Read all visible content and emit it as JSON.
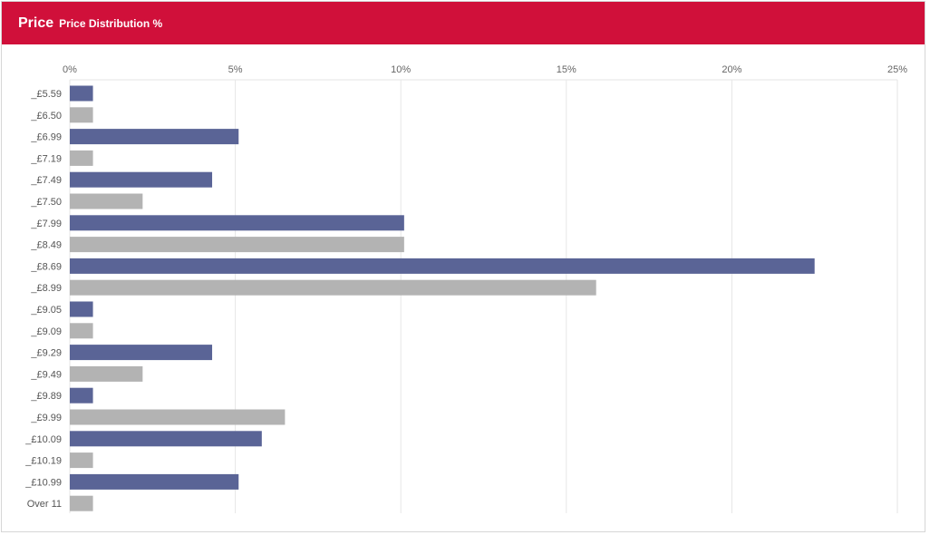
{
  "header": {
    "title": "Price",
    "subtitle": "Price Distribution %"
  },
  "colors": {
    "header_bg": "#d0103a",
    "bar_primary": "#5a6496",
    "bar_secondary": "#b3b3b3",
    "grid": "#e6e6e6"
  },
  "chart_data": {
    "type": "bar",
    "orientation": "horizontal",
    "title": "",
    "xlabel": "",
    "ylabel": "",
    "xlim": [
      0,
      25
    ],
    "grid": true,
    "x_ticks": [
      0,
      5,
      10,
      15,
      20,
      25
    ],
    "x_tick_labels": [
      "0%",
      "5%",
      "10%",
      "15%",
      "20%",
      "25%"
    ],
    "categories": [
      "_£5.59",
      "_£6.50",
      "_£6.99",
      "_£7.19",
      "_£7.49",
      "_£7.50",
      "_£7.99",
      "_£8.49",
      "_£8.69",
      "_£8.99",
      "_£9.05",
      "_£9.09",
      "_£9.29",
      "_£9.49",
      "_£9.89",
      "_£9.99",
      "_£10.09",
      "_£10.19",
      "_£10.99",
      "Over 11"
    ],
    "values": [
      0.7,
      0.7,
      5.1,
      0.7,
      4.3,
      2.2,
      10.1,
      10.1,
      22.5,
      15.9,
      0.7,
      0.7,
      4.3,
      2.2,
      0.7,
      6.5,
      5.8,
      0.7,
      5.1,
      0.7
    ]
  }
}
